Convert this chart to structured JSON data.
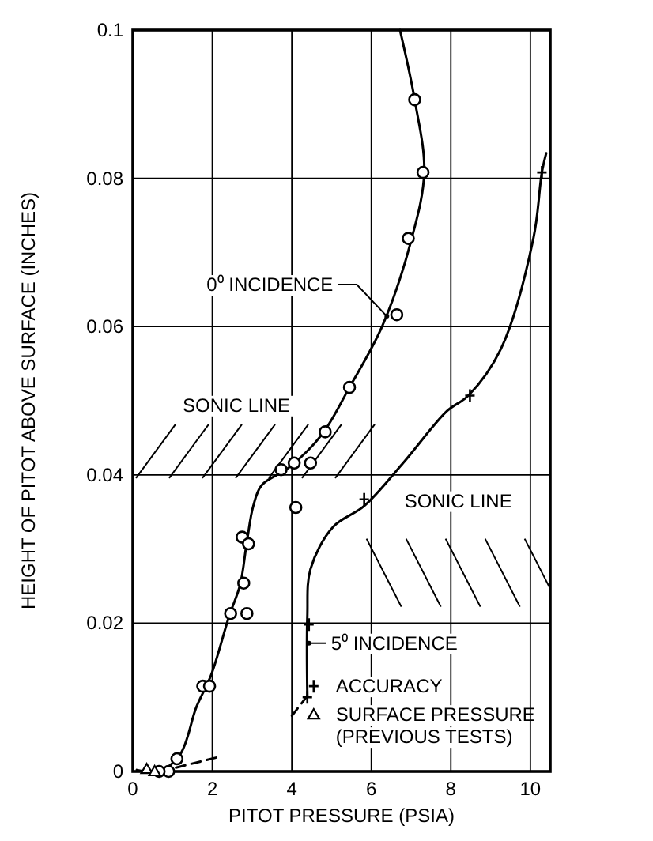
{
  "chart_data": {
    "type": "line",
    "xlabel": "PITOT PRESSURE (PSIA)",
    "ylabel": "HEIGHT OF PITOT ABOVE SURFACE (INCHES)",
    "xlim": [
      0,
      10.5
    ],
    "xticks": [
      0,
      2,
      4,
      6,
      8,
      10
    ],
    "ylim": [
      0,
      0.1
    ],
    "yticks": [
      0,
      0.02,
      0.04,
      0.06,
      0.08,
      0.1
    ],
    "grid": true,
    "legend": "bottom right",
    "series": [
      {
        "color": "#000000",
        "marker": "none",
        "x": [
          6.72,
          7.09,
          7.33,
          6.97,
          6.27,
          5.45,
          4.75,
          3.93,
          3.24,
          3.03,
          2.87,
          2.7,
          2.42,
          1.97,
          1.6,
          1.19,
          0.66,
          0.1
        ],
        "values": [
          0.1,
          0.0906,
          0.0808,
          0.071,
          0.06,
          0.0518,
          0.0454,
          0.041,
          0.0386,
          0.0358,
          0.031,
          0.0252,
          0.0209,
          0.013,
          0.0087,
          0.0023,
          0,
          0.0002
        ]
      },
      {
        "color": "#000000",
        "marker": "none",
        "line_style": "dashed",
        "x": [
          0.7,
          2.2
        ],
        "values": [
          0,
          0.002
        ]
      },
      {
        "color": "#000000",
        "marker": "none",
        "x": [
          10.4,
          10.29,
          10.08,
          9.26,
          8.44,
          7.9,
          6.8,
          5.82,
          5.04,
          4.47,
          4.39,
          4.39
        ],
        "values": [
          0.0834,
          0.0808,
          0.072,
          0.057,
          0.0507,
          0.0486,
          0.0416,
          0.0358,
          0.033,
          0.0273,
          0.0209,
          0.0102
        ]
      },
      {
        "color": "#000000",
        "marker": "none",
        "line_style": "dashed",
        "x": [
          4.39,
          3.93
        ],
        "values": [
          0.0102,
          0.007
        ]
      },
      {
        "type": "scatter",
        "color": "#000000",
        "marker": "circle",
        "x": [
          7.09,
          7.3,
          6.93,
          6.64,
          5.45,
          4.84,
          3.73,
          4.06,
          4.47,
          4.1,
          2.75,
          2.91,
          2.79,
          2.46,
          2.87,
          1.76,
          1.93,
          1.11,
          0.9,
          0.66
        ],
        "values": [
          0.0906,
          0.0808,
          0.0719,
          0.0616,
          0.0518,
          0.0458,
          0.0407,
          0.0416,
          0.0416,
          0.0356,
          0.0316,
          0.0307,
          0.0254,
          0.0213,
          0.0213,
          0.0115,
          0.0115,
          0.0017,
          0,
          0
        ]
      },
      {
        "type": "scatter",
        "name": "ACCURACY",
        "color": "#000000",
        "marker": "cross",
        "x": [
          10.29,
          8.48,
          5.82,
          4.43,
          4.39
        ],
        "values": [
          0.0808,
          0.0507,
          0.0367,
          0.0198,
          0.01
        ]
      },
      {
        "type": "scatter",
        "name": "SURFACE PRESSURE (PREVIOUS TESTS)",
        "color": "#000000",
        "marker": "triangle",
        "x": [
          0.35,
          0.55
        ],
        "values": [
          0.0003,
          0
        ]
      }
    ],
    "annotations": [
      {
        "text": "0⁰ INCIDENCE",
        "x": 6.39,
        "y": 0.0614
      },
      {
        "text": "5⁰ INCIDENCE",
        "x": 4.43,
        "y": 0.0173
      },
      {
        "text": "SONIC LINE",
        "x": 3.6,
        "y": 0.04
      },
      {
        "text": "SONIC LINE",
        "x": 5.8,
        "y": 0.0365
      }
    ]
  }
}
